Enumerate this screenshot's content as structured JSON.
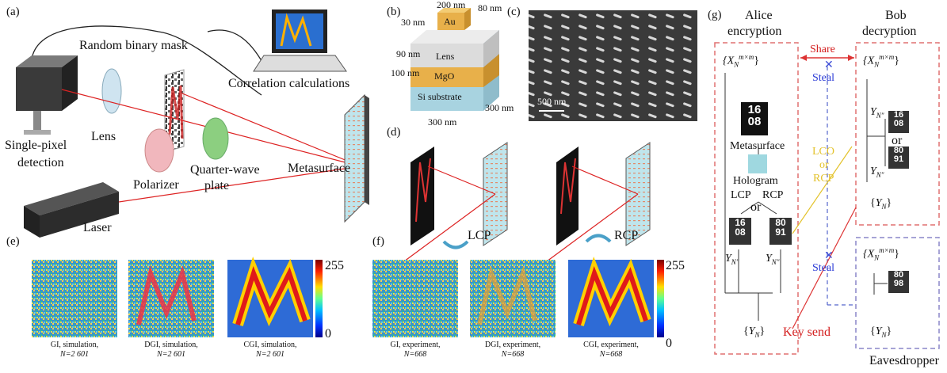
{
  "panels": {
    "a": {
      "tag": "(a)",
      "mask_label": "Random binary mask",
      "detector_label_1": "Single-pixel",
      "detector_label_2": "detection",
      "lens_label": "Lens",
      "correlation_label": "Correlation calculations",
      "polarizer_label": "Polarizer",
      "qwp_label_1": "Quarter-wave",
      "qwp_label_2": "plate",
      "metasurface_label": "Metasurface",
      "laser_label": "Laser"
    },
    "b": {
      "tag": "(b)",
      "dims": {
        "d200": "200 nm",
        "d80": "80 nm",
        "d30": "30 nm",
        "d90": "90 nm",
        "d100": "100 nm",
        "d300a": "300 nm",
        "d300b": "300 nm"
      },
      "layers": {
        "au": "Au",
        "lens": "Lens",
        "mgo": "MgO",
        "si": "Si substrate"
      }
    },
    "c": {
      "tag": "(c)",
      "scale": "500 nm"
    },
    "d": {
      "tag": "(d)",
      "lcp": "LCP",
      "rcp": "RCP"
    },
    "e": {
      "tag": "(e)",
      "colorbar_max": "255",
      "colorbar_min": "0",
      "captions": [
        {
          "line1": "GI, simulation,",
          "line2": "N=2 601"
        },
        {
          "line1": "DGI, simulation,",
          "line2": "N=2 601"
        },
        {
          "line1": "CGI, simulation,",
          "line2": "N=2 601"
        }
      ]
    },
    "f": {
      "tag": "(f)",
      "colorbar_max": "255",
      "colorbar_min": "0",
      "captions": [
        {
          "line1": "GI, experiment,",
          "line2": "N=668"
        },
        {
          "line1": "DGI, experiment,",
          "line2": "N=668"
        },
        {
          "line1": "CGI, experiment,",
          "line2": "N=668"
        }
      ]
    },
    "g": {
      "tag": "(g)",
      "alice_1": "Alice",
      "alice_2": "encryption",
      "bob_1": "Bob",
      "bob_2": "decryption",
      "share": "Share",
      "steal": "Steal",
      "steal2": "Steal",
      "xset": "{X",
      "xsub": "N",
      "xsup": "m×m",
      "xclose": "}",
      "metasurface": "Metasurface",
      "hologram": "Hologram",
      "lcp": "LCP",
      "rcp": "RCP",
      "or": "or",
      "or2": "or",
      "lco_or_rcp_1": "LCO",
      "lco_or_rcp_2": "or",
      "lco_or_rcp_3": "RCP",
      "y_label": "Y",
      "y_sub": "N″",
      "yset": "{Y",
      "yset_sub": "N",
      "yset_close": "}",
      "key_send": "Key send",
      "eavesdropper": "Eavesdropper",
      "tile_top": "16\n08",
      "tile_rcp": "80\n91",
      "tile_eve": "80\n98"
    }
  }
}
